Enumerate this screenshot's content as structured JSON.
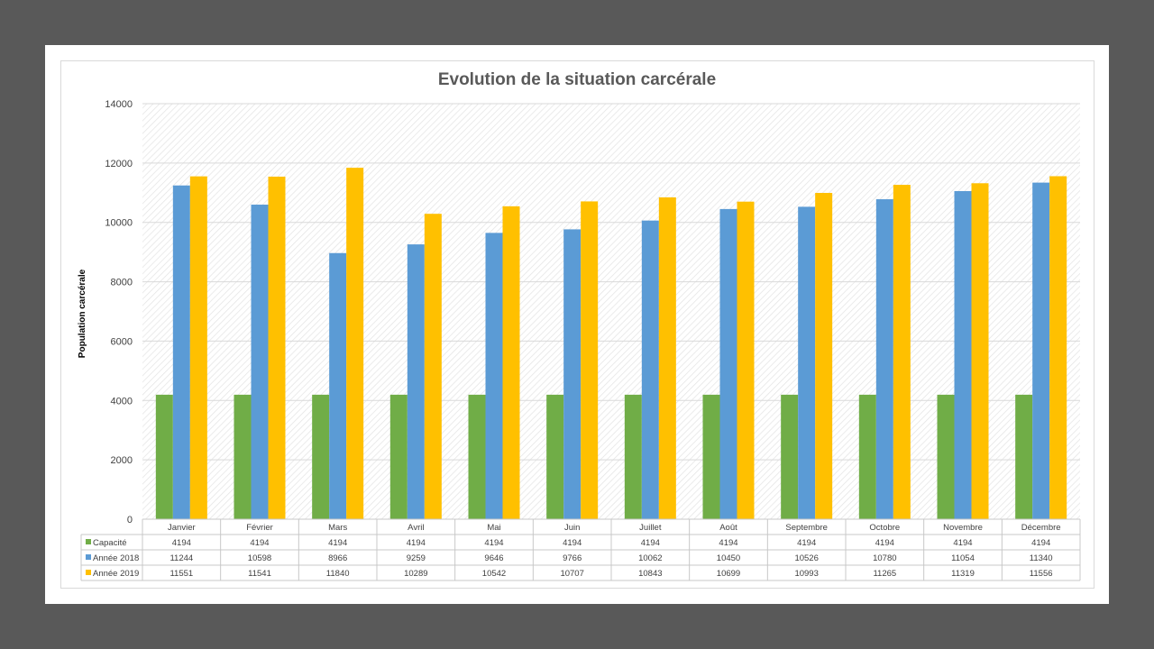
{
  "chart_data": {
    "type": "bar",
    "title": "Evolution de la situation carcérale",
    "ylabel": "Population carcérale",
    "xlabel": "",
    "ylim": [
      0,
      14000
    ],
    "yticks": [
      0,
      2000,
      4000,
      6000,
      8000,
      10000,
      12000,
      14000
    ],
    "grid": true,
    "legend": "data-table",
    "categories": [
      "Janvier",
      "Février",
      "Mars",
      "Avril",
      "Mai",
      "Juin",
      "Juillet",
      "Août",
      "Septembre",
      "Octobre",
      "Novembre",
      "Décembre"
    ],
    "series": [
      {
        "name": "Capacité",
        "color": "#70ad47",
        "values": [
          4194,
          4194,
          4194,
          4194,
          4194,
          4194,
          4194,
          4194,
          4194,
          4194,
          4194,
          4194
        ]
      },
      {
        "name": "Année 2018",
        "color": "#5b9bd5",
        "values": [
          11244,
          10598,
          8966,
          9259,
          9646,
          9766,
          10062,
          10450,
          10526,
          10780,
          11054,
          11340
        ]
      },
      {
        "name": "Année 2019",
        "color": "#ffc000",
        "values": [
          11551,
          11541,
          11840,
          10289,
          10542,
          10707,
          10843,
          10699,
          10993,
          11265,
          11319,
          11556
        ]
      }
    ]
  }
}
